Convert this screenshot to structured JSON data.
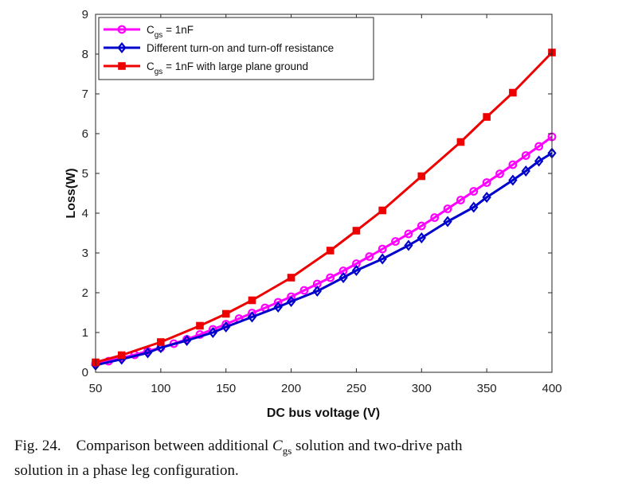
{
  "chart_data": {
    "type": "line",
    "xlabel": "DC bus voltage (V)",
    "ylabel": "Loss(W)",
    "xlim": [
      50,
      400
    ],
    "ylim": [
      0,
      9
    ],
    "x_ticks": [
      50,
      100,
      150,
      200,
      250,
      300,
      350,
      400
    ],
    "y_ticks": [
      0,
      1,
      2,
      3,
      4,
      5,
      6,
      7,
      8,
      9
    ],
    "grid": false,
    "legend_position": "top-left",
    "series": [
      {
        "name_main": "C",
        "name_sub": "gs",
        "name_rest": " = 1nF",
        "color": "#ff00ff",
        "marker": "circle",
        "x": [
          50,
          60,
          70,
          80,
          90,
          100,
          110,
          120,
          130,
          140,
          150,
          160,
          170,
          180,
          190,
          200,
          210,
          220,
          230,
          240,
          250,
          260,
          270,
          280,
          290,
          300,
          310,
          320,
          330,
          340,
          350,
          360,
          370,
          380,
          390,
          400
        ],
        "y": [
          0.22,
          0.28,
          0.36,
          0.44,
          0.53,
          0.62,
          0.72,
          0.83,
          0.95,
          1.08,
          1.21,
          1.35,
          1.49,
          1.62,
          1.76,
          1.9,
          2.06,
          2.22,
          2.38,
          2.55,
          2.73,
          2.91,
          3.1,
          3.29,
          3.48,
          3.68,
          3.89,
          4.11,
          4.33,
          4.55,
          4.77,
          4.99,
          5.22,
          5.45,
          5.68,
          5.92
        ]
      },
      {
        "name_main": "Different turn-on and turn-off resistance",
        "name_sub": "",
        "name_rest": "",
        "color": "#0000cc",
        "marker": "diamond",
        "x": [
          50,
          70,
          90,
          100,
          120,
          140,
          150,
          170,
          190,
          200,
          220,
          240,
          250,
          270,
          290,
          300,
          320,
          340,
          350,
          370,
          380,
          390,
          400
        ],
        "y": [
          0.18,
          0.33,
          0.49,
          0.62,
          0.8,
          1.0,
          1.14,
          1.39,
          1.64,
          1.78,
          2.04,
          2.38,
          2.56,
          2.85,
          3.19,
          3.38,
          3.79,
          4.15,
          4.4,
          4.83,
          5.06,
          5.31,
          5.51
        ]
      },
      {
        "name_main": "C",
        "name_sub": "gs",
        "name_rest": " = 1nF with large plane ground",
        "color": "#ee0000",
        "marker": "square",
        "x": [
          50,
          70,
          100,
          130,
          150,
          170,
          200,
          230,
          250,
          270,
          300,
          330,
          350,
          370,
          400
        ],
        "y": [
          0.25,
          0.43,
          0.76,
          1.17,
          1.47,
          1.81,
          2.38,
          3.06,
          3.56,
          4.07,
          4.93,
          5.79,
          6.42,
          7.03,
          8.04
        ]
      }
    ]
  },
  "caption": {
    "label": "Fig. 24.",
    "text_before": "Comparison between additional ",
    "symbol_main": "C",
    "symbol_sub": "gs",
    "text_after_line1": " solution and two-drive path",
    "line2": "solution in a phase leg configuration."
  }
}
